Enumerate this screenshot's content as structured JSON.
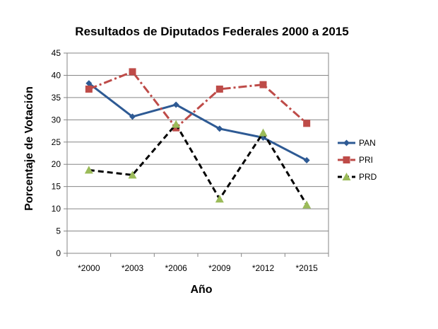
{
  "chart_data": {
    "type": "line",
    "title": "Resultados de Diputados Federales  2000 a 2015",
    "xlabel": "Año",
    "ylabel": "Porcentaje de Votación",
    "categories": [
      "*2000",
      "*2003",
      "*2006",
      "*2009",
      "*2012",
      "*2015"
    ],
    "ylim": [
      0,
      45
    ],
    "yticks": [
      0,
      5,
      10,
      15,
      20,
      25,
      30,
      35,
      40,
      45
    ],
    "grid": true,
    "legend": "right",
    "series": [
      {
        "name": "PAN",
        "values": [
          38.2,
          30.7,
          33.4,
          28.0,
          26.0,
          20.9
        ],
        "color": "#2e5a94",
        "marker": "diamond",
        "line": "solid"
      },
      {
        "name": "PRI",
        "values": [
          36.9,
          40.8,
          28.2,
          36.9,
          37.9,
          29.2
        ],
        "color": "#be4b48",
        "marker": "square",
        "line": "dashdot"
      },
      {
        "name": "PRD",
        "values": [
          18.7,
          17.6,
          29.0,
          12.2,
          27.1,
          10.9
        ],
        "color": "#000000",
        "marker": "triangle",
        "line": "dashed",
        "marker_color": "#9bbb59"
      }
    ]
  }
}
